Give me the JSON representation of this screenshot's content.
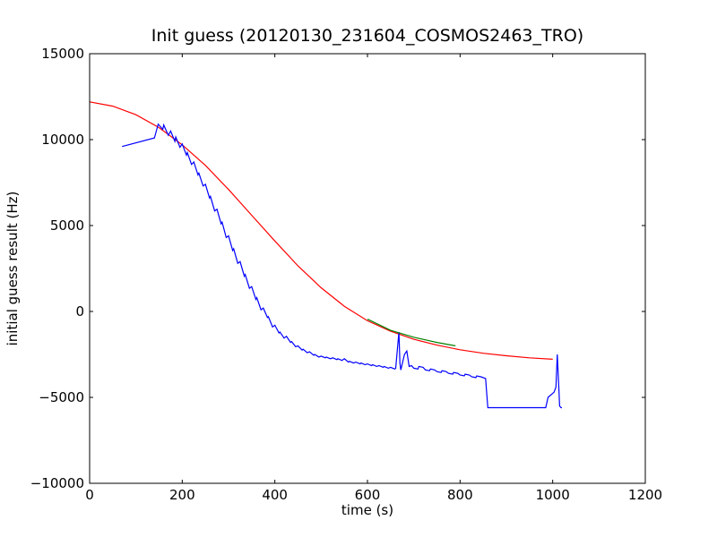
{
  "chart_data": {
    "type": "line",
    "title": "Init guess (20120130_231604_COSMOS2463_TRO)",
    "xlabel": "time (s)",
    "ylabel": "initial guess result (Hz)",
    "xlim": [
      0,
      1200
    ],
    "ylim": [
      -10000,
      15000
    ],
    "xticks": [
      0,
      200,
      400,
      600,
      800,
      1000,
      1200
    ],
    "yticks": [
      -10000,
      -5000,
      0,
      5000,
      10000,
      15000
    ],
    "grid": false,
    "legend": "none",
    "series": [
      {
        "color": "#ff0000",
        "x": [
          0,
          50,
          100,
          150,
          200,
          250,
          300,
          350,
          400,
          450,
          500,
          550,
          600,
          650,
          700,
          750,
          800,
          850,
          900,
          950,
          1000
        ],
        "y": [
          12200,
          11950,
          11450,
          10700,
          9700,
          8500,
          7100,
          5600,
          4100,
          2650,
          1380,
          300,
          -540,
          -1150,
          -1620,
          -1960,
          -2230,
          -2430,
          -2580,
          -2700,
          -2780
        ]
      },
      {
        "color": "#0000ff",
        "x": [
          70,
          140,
          148,
          158,
          160,
          170,
          175,
          184,
          186,
          195,
          200,
          209,
          211,
          220,
          225,
          234,
          236,
          245,
          250,
          259,
          261,
          270,
          275,
          284,
          286,
          295,
          300,
          309,
          311,
          320,
          325,
          334,
          336,
          345,
          350,
          359,
          361,
          370,
          375,
          384,
          386,
          395,
          400,
          409,
          411,
          420,
          425,
          434,
          436,
          445,
          450,
          459,
          461,
          470,
          475,
          484,
          486,
          495,
          500,
          509,
          511,
          520,
          525,
          534,
          536,
          545,
          550,
          559,
          561,
          570,
          575,
          584,
          586,
          595,
          600,
          609,
          611,
          620,
          625,
          634,
          636,
          645,
          650,
          659,
          661,
          668,
          670,
          672,
          680,
          685,
          690,
          695,
          700,
          709,
          711,
          720,
          725,
          734,
          736,
          745,
          750,
          759,
          761,
          770,
          775,
          784,
          786,
          795,
          800,
          809,
          811,
          820,
          825,
          834,
          836,
          845,
          855,
          860,
          862,
          985,
          990,
          1003,
          1007,
          1010,
          1013,
          1015,
          1018,
          1020
        ],
        "y": [
          9600,
          10100,
          10900,
          10600,
          10850,
          10250,
          10500,
          9900,
          10150,
          9550,
          9750,
          9100,
          9250,
          8550,
          8700,
          7950,
          8050,
          7300,
          7400,
          6600,
          6700,
          5850,
          5950,
          5100,
          5200,
          4300,
          4400,
          3550,
          3650,
          2800,
          2900,
          2050,
          2150,
          1350,
          1450,
          700,
          800,
          100,
          200,
          -350,
          -300,
          -900,
          -800,
          -1250,
          -1200,
          -1550,
          -1450,
          -1800,
          -1750,
          -2050,
          -2000,
          -2250,
          -2200,
          -2400,
          -2350,
          -2550,
          -2500,
          -2650,
          -2600,
          -2700,
          -2650,
          -2750,
          -2700,
          -2800,
          -2750,
          -2850,
          -2750,
          -2950,
          -2900,
          -3000,
          -2950,
          -3050,
          -3000,
          -3100,
          -3050,
          -3150,
          -3100,
          -3200,
          -3150,
          -3250,
          -3200,
          -3300,
          -3250,
          -3350,
          -3300,
          -1200,
          -3000,
          -3400,
          -2500,
          -2300,
          -3200,
          -3150,
          -3300,
          -3350,
          -3200,
          -3250,
          -3400,
          -3450,
          -3350,
          -3400,
          -3500,
          -3550,
          -3450,
          -3500,
          -3600,
          -3650,
          -3550,
          -3600,
          -3700,
          -3750,
          -3650,
          -3700,
          -3800,
          -3850,
          -3750,
          -3800,
          -3900,
          -5600,
          -5600,
          -5600,
          -5000,
          -4700,
          -4400,
          -2500,
          -4300,
          -5500,
          -5600,
          -5600
        ]
      },
      {
        "color": "#008000",
        "x": [
          600,
          650,
          700,
          750,
          790
        ],
        "y": [
          -450,
          -1100,
          -1500,
          -1800,
          -2000
        ]
      }
    ]
  }
}
